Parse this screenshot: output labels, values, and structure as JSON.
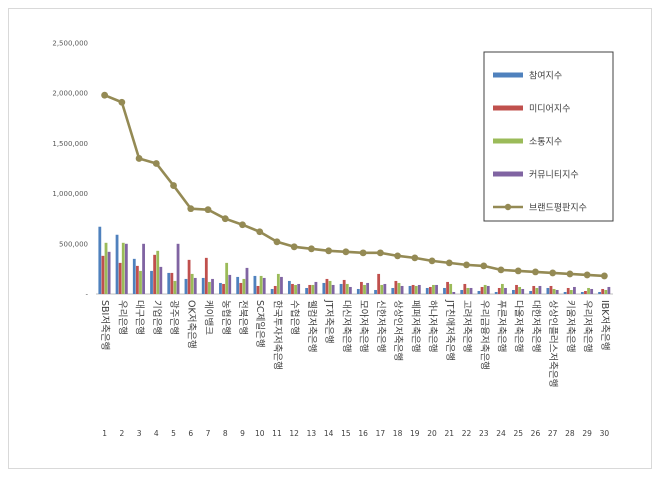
{
  "chart_data": {
    "type": "bar",
    "title": "",
    "xlabel": "",
    "ylabel": "",
    "ylim": [
      0,
      2500000
    ],
    "yticks": [
      0,
      500000,
      1000000,
      1500000,
      2000000,
      2500000
    ],
    "ytick_labels": [
      "-",
      "500,000",
      "1,000,000",
      "1,500,000",
      "2,000,000",
      "2,500,000"
    ],
    "grid": false,
    "legend_position": "top-right",
    "categories": [
      "SBI저축은행",
      "우리은행",
      "대구은행",
      "기업은행",
      "광주은행",
      "OK저축은행",
      "케이뱅크",
      "농협은행",
      "전북은행",
      "SC제일은행",
      "한국투자저축은행",
      "수협은행",
      "웰컴저축은행",
      "JT저축은행",
      "대신저축은행",
      "모아저축은행",
      "신한저축은행",
      "상상인저축은행",
      "페퍼저축은행",
      "하나저축은행",
      "JT친애저축은행",
      "고려저축은행",
      "우리금융저축은행",
      "푸른저축은행",
      "다올저축은행",
      "대한저축은행",
      "상상인플러스저축은행",
      "키움저축은행",
      "우리저축은행",
      "IBK저축은행"
    ],
    "category_labels": [
      "SBI저축은행",
      "우리은행",
      "대구은행",
      "기업은행",
      "광주은행",
      "OK저축은행",
      "케이뱅크",
      "농협은행",
      "전북은행",
      "SC제일은행",
      "한국투자저축은행",
      "수협은행",
      "웰컴저축은행",
      "JT저축은행",
      "대신저축은행",
      "모아저축은행",
      "신한저축은행",
      "상상인저축은행",
      "페퍼저축은행",
      "하나저축은행",
      "JT친애저축은행",
      "고려저축은행",
      "우리금융저축은행",
      "푸른저축은행",
      "다올저축은행",
      "대한저축은행",
      "상상인플러스저축은행",
      "키움저축은행",
      "우리저축은행",
      "IBK저축은행"
    ],
    "ranks": [
      "1",
      "2",
      "3",
      "4",
      "5",
      "6",
      "7",
      "8",
      "9",
      "10",
      "11",
      "12",
      "13",
      "14",
      "15",
      "16",
      "17",
      "18",
      "19",
      "20",
      "21",
      "22",
      "23",
      "24",
      "25",
      "26",
      "27",
      "28",
      "29",
      "30"
    ],
    "series": [
      {
        "name": "참여지수",
        "type": "bar",
        "color": "#4f81bd",
        "values": [
          670000,
          590000,
          350000,
          230000,
          210000,
          150000,
          160000,
          110000,
          170000,
          180000,
          50000,
          130000,
          60000,
          110000,
          100000,
          50000,
          40000,
          60000,
          80000,
          60000,
          60000,
          40000,
          30000,
          20000,
          40000,
          30000,
          60000,
          20000,
          20000,
          20000
        ]
      },
      {
        "name": "미디어지수",
        "type": "bar",
        "color": "#c0504d",
        "values": [
          380000,
          310000,
          280000,
          390000,
          210000,
          340000,
          360000,
          100000,
          110000,
          80000,
          80000,
          100000,
          90000,
          150000,
          140000,
          120000,
          200000,
          130000,
          90000,
          70000,
          120000,
          100000,
          70000,
          60000,
          90000,
          80000,
          80000,
          60000,
          30000,
          50000
        ]
      },
      {
        "name": "소통지수",
        "type": "bar",
        "color": "#9bbb59",
        "values": [
          510000,
          510000,
          230000,
          430000,
          130000,
          200000,
          120000,
          310000,
          150000,
          180000,
          200000,
          90000,
          90000,
          130000,
          100000,
          90000,
          90000,
          110000,
          80000,
          90000,
          100000,
          60000,
          90000,
          100000,
          70000,
          60000,
          50000,
          40000,
          60000,
          40000
        ]
      },
      {
        "name": "커뮤니티지수",
        "type": "bar",
        "color": "#8064a2",
        "values": [
          420000,
          500000,
          500000,
          270000,
          500000,
          160000,
          150000,
          190000,
          260000,
          160000,
          170000,
          100000,
          120000,
          90000,
          70000,
          110000,
          100000,
          80000,
          90000,
          90000,
          20000,
          60000,
          80000,
          60000,
          50000,
          80000,
          40000,
          70000,
          50000,
          70000
        ]
      },
      {
        "name": "브랜드평판지수",
        "type": "line",
        "color": "#948a54",
        "values": [
          1980000,
          1910000,
          1350000,
          1300000,
          1080000,
          850000,
          840000,
          750000,
          690000,
          620000,
          520000,
          470000,
          450000,
          430000,
          420000,
          410000,
          410000,
          380000,
          360000,
          330000,
          310000,
          290000,
          280000,
          240000,
          230000,
          220000,
          210000,
          200000,
          190000,
          180000
        ]
      }
    ]
  }
}
